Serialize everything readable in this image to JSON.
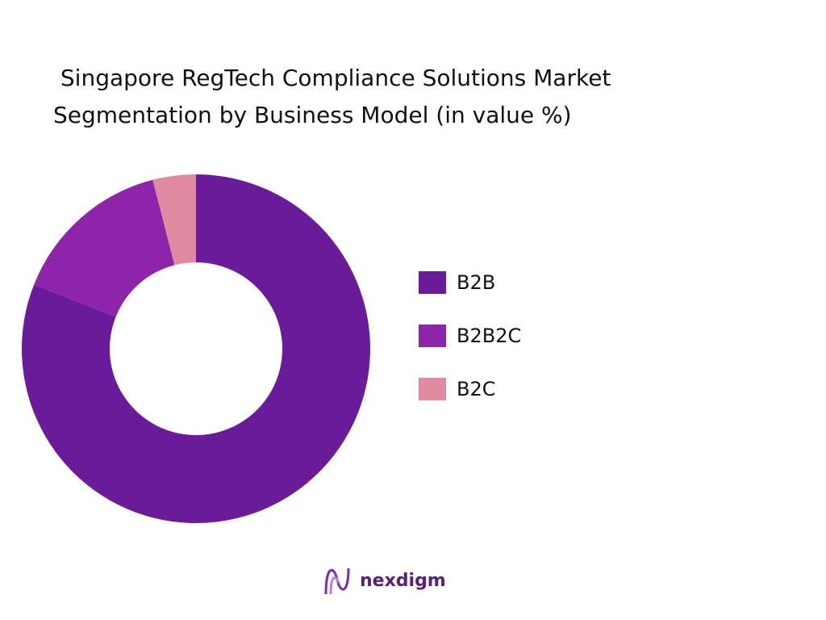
{
  "chart_data": {
    "type": "donut",
    "title": " Singapore RegTech Compliance Solutions Market Segmentation by Business Model (in value %)",
    "categories": [
      "B2B",
      "B2B2C",
      "B2C"
    ],
    "values": [
      81,
      15,
      4
    ],
    "colors": [
      "#6a1b9a",
      "#8e24aa",
      "#de8aa0"
    ],
    "legend": "right",
    "brand": "nexdigm"
  }
}
